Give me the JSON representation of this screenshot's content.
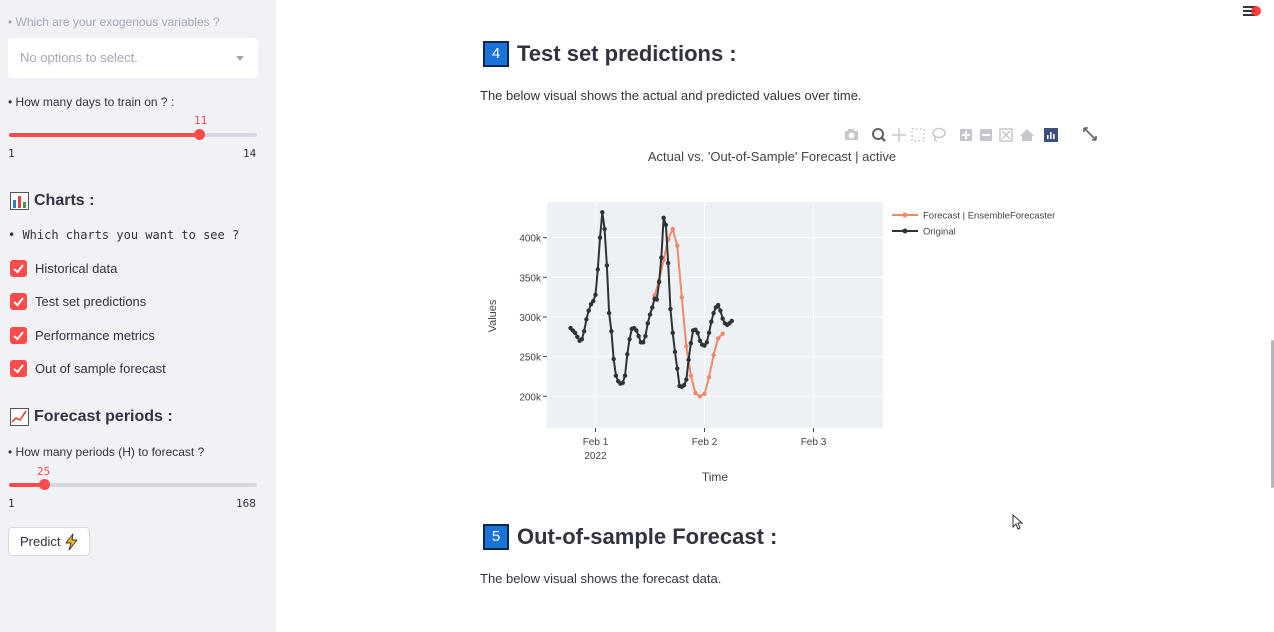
{
  "sidebar": {
    "exog_question": "• Which are your exogenous variables ?",
    "exog_placeholder": "No options to select.",
    "train_days_question": "• How many days to train on ? :",
    "train_days": {
      "value": "11",
      "min": "1",
      "max": "14",
      "fraction": 0.7692
    },
    "charts_heading": "Charts :",
    "charts_question": "• Which charts you want to see ?",
    "charts_options": [
      {
        "label": "Historical data",
        "checked": true
      },
      {
        "label": "Test set predictions",
        "checked": true
      },
      {
        "label": "Performance metrics",
        "checked": true
      },
      {
        "label": "Out of sample forecast",
        "checked": true
      }
    ],
    "forecast_heading": "Forecast periods :",
    "forecast_question": "• How many periods (H) to forecast ?",
    "forecast_periods": {
      "value": "25",
      "min": "1",
      "max": "168",
      "fraction": 0.1437
    },
    "predict_label": "Predict"
  },
  "main": {
    "section4": {
      "number": "4",
      "title": "Test set predictions :",
      "text": "The below visual shows the actual and predicted values over time."
    },
    "section5": {
      "number": "5",
      "title": "Out-of-sample Forecast :",
      "text": "The below visual shows the forecast data."
    }
  },
  "colors": {
    "accent": "#ff4b4b",
    "forecast_line": "#ef8a6a",
    "original_line": "#2e3338",
    "section_badge": "#1a73d8"
  },
  "icons": [
    "camera-icon",
    "zoom-icon",
    "pan-icon",
    "box-select-icon",
    "lasso-icon",
    "zoom-in-icon",
    "zoom-out-icon",
    "autoscale-icon",
    "reset-axes-icon",
    "plotly-logo-icon",
    "fullscreen-icon",
    "hamburger-menu-icon",
    "bar-chart-emoji-icon",
    "line-chart-emoji-icon",
    "lightning-icon"
  ],
  "chart_data": {
    "type": "line",
    "title": "Actual vs. 'Out-of-Sample' Forecast | active",
    "xlabel": "Time",
    "ylabel": "Values",
    "x_tick_labels": [
      "Feb 1",
      "Feb 2",
      "Feb 3"
    ],
    "x_tick_sub_label": "2022",
    "y_tick_labels": [
      "200k",
      "250k",
      "300k",
      "350k",
      "400k"
    ],
    "ylim": [
      160000,
      445000
    ],
    "xlim_hours": [
      -6,
      36
    ],
    "x_unit": "hours after Feb 1 2022 00:00",
    "legend_position": "right",
    "grid": true,
    "series": [
      {
        "name": "Forecast | EnsembleForecaster",
        "x": [
          13,
          14,
          15,
          16,
          17,
          18,
          19,
          20,
          21,
          22,
          23,
          24,
          25,
          26,
          27,
          28
        ],
        "y": [
          327000,
          346000,
          372000,
          398000,
          411000,
          390000,
          325000,
          263000,
          226000,
          204000,
          200000,
          203000,
          224000,
          252000,
          273000,
          279000
        ]
      },
      {
        "name": "Original",
        "x": [
          -5.5,
          -5,
          -4.5,
          -4,
          -3.5,
          -3,
          -2.5,
          -2,
          -1.5,
          -1,
          -0.5,
          0,
          0.5,
          1,
          1.5,
          2,
          2.5,
          3,
          3.5,
          4,
          4.5,
          5,
          5.5,
          6,
          6.5,
          7,
          7.5,
          8,
          8.5,
          9,
          9.5,
          10,
          10.5,
          11,
          11.5,
          12,
          12.5,
          13,
          13.5,
          14,
          14.5,
          15,
          15.5,
          16,
          16.5,
          17,
          17.5,
          18,
          18.5,
          19,
          19.5,
          20,
          20.5,
          21,
          21.5,
          22,
          22.5,
          23,
          23.5,
          24,
          24.5,
          25,
          25.5,
          26,
          26.5,
          27,
          27.5,
          28,
          28.5,
          29,
          29.5,
          30
        ],
        "y": [
          286000,
          283000,
          280000,
          275000,
          270000,
          272000,
          282000,
          297000,
          308000,
          316000,
          320000,
          328000,
          360000,
          400000,
          432000,
          411000,
          365000,
          305000,
          282000,
          247000,
          226000,
          219000,
          216000,
          217000,
          226000,
          253000,
          272000,
          285000,
          286000,
          283000,
          276000,
          268000,
          268000,
          276000,
          292000,
          303000,
          312000,
          323000,
          322000,
          344000,
          375000,
          425000,
          416000,
          368000,
          310000,
          280000,
          256000,
          235000,
          213000,
          212000,
          214000,
          221000,
          246000,
          267000,
          283000,
          284000,
          280000,
          270000,
          265000,
          264000,
          268000,
          280000,
          294000,
          305000,
          312000,
          315000,
          308000,
          298000,
          292000,
          290000,
          292000,
          295000
        ]
      }
    ]
  }
}
